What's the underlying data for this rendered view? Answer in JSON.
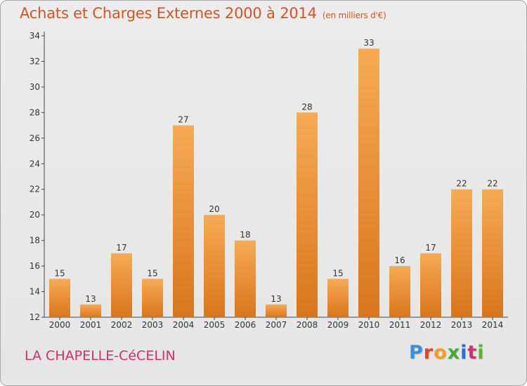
{
  "header": {
    "title": "Achats et Charges Externes 2000 à 2014",
    "subtitle": "(en milliers d'€)"
  },
  "footer": {
    "commune": "LA CHAPELLE-CéCELIN",
    "logo": [
      "P",
      "r",
      "o",
      "x",
      "i",
      "t",
      "i"
    ],
    "logo_colors": [
      "#3a8fd8",
      "#e84020",
      "#f0a020",
      "#48a838",
      "#2a6fd0",
      "#d03070",
      "#60b030"
    ]
  },
  "colors": {
    "bar_light": "#f5a650",
    "bar_dark": "#d8781e",
    "title": "#d05428",
    "text": "#333333"
  },
  "chart_data": {
    "type": "bar",
    "title": "Achats et Charges Externes 2000 à 2014",
    "subtitle": "(en milliers d'€)",
    "categories": [
      "2000",
      "2001",
      "2002",
      "2003",
      "2004",
      "2005",
      "2006",
      "2007",
      "2008",
      "2009",
      "2010",
      "2011",
      "2012",
      "2013",
      "2014"
    ],
    "values": [
      15,
      13,
      17,
      15,
      27,
      20,
      18,
      13,
      28,
      15,
      33,
      16,
      17,
      22,
      22
    ],
    "ylim": [
      12,
      34
    ],
    "yticks": [
      12,
      14,
      16,
      18,
      20,
      22,
      24,
      26,
      28,
      30,
      32,
      34
    ],
    "xlabel": "",
    "ylabel": "",
    "grid": false,
    "legend": "none"
  }
}
